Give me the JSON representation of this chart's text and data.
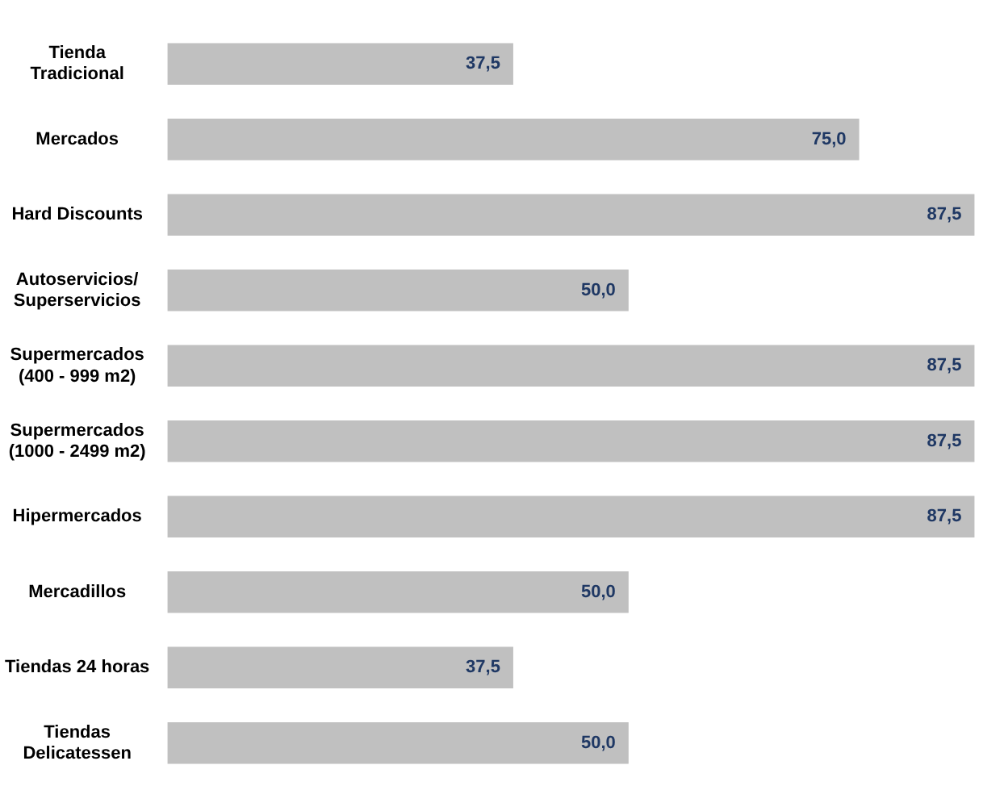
{
  "chart_data": {
    "type": "bar",
    "orientation": "horizontal",
    "categories": [
      "Tienda\nTradicional",
      "Mercados",
      "Hard Discounts",
      "Autoservicios/\nSuperservicios",
      "Supermercados\n(400 - 999 m2)",
      "Supermercados\n(1000 - 2499 m2)",
      "Hipermercados",
      "Mercadillos",
      "Tiendas 24 horas",
      "Tiendas\nDelicatessen"
    ],
    "values": [
      37.5,
      75.0,
      87.5,
      50.0,
      87.5,
      87.5,
      87.5,
      50.0,
      37.5,
      50.0
    ],
    "value_labels": [
      "37,5",
      "75,0",
      "87,5",
      "50,0",
      "87,5",
      "87,5",
      "87,5",
      "50,0",
      "37,5",
      "50,0"
    ],
    "color": "#c0c0c0",
    "legend": false
  }
}
